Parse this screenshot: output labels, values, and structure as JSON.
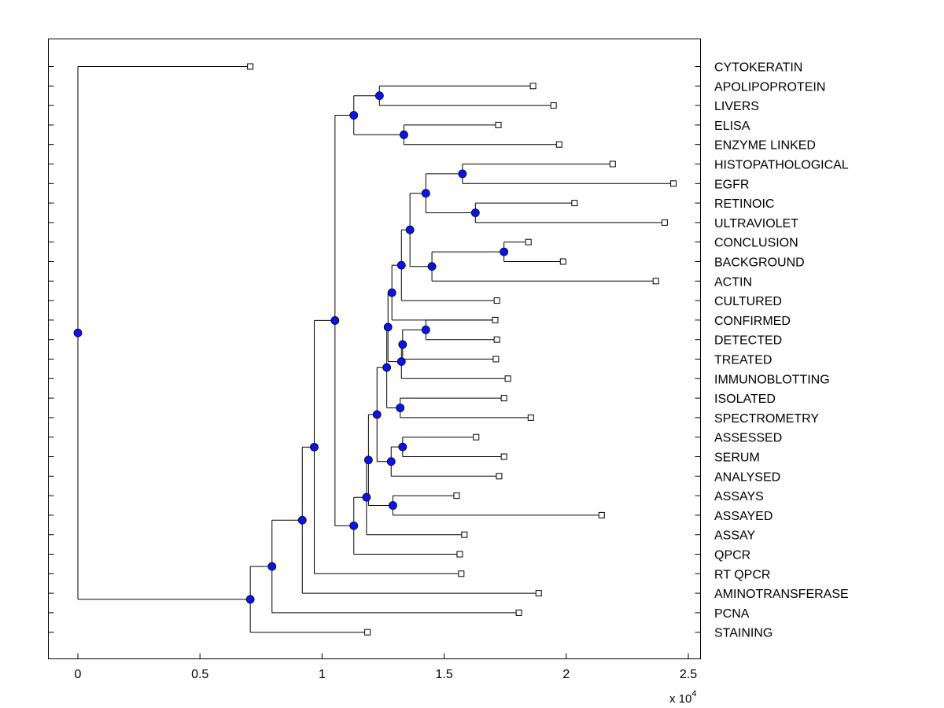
{
  "chart_data": {
    "type": "dendrogram",
    "title": "",
    "xlabel": "",
    "ylabel": "",
    "x_exponent": {
      "base": "x 10",
      "power": "4"
    },
    "xlim": [
      -0.12,
      2.55
    ],
    "xticks": [
      0,
      0.5,
      1,
      1.5,
      2,
      2.5
    ],
    "xtick_labels": [
      "0",
      "0.5",
      "1",
      "1.5",
      "2",
      "2.5"
    ],
    "colors": {
      "node_fill": "#0a14f0",
      "line": "#000000",
      "leaf_fill": "#ffffff"
    },
    "leaves": [
      {
        "label": "CYTOKERATIN",
        "value": 0.706
      },
      {
        "label": "APOLIPOPROTEIN",
        "value": 1.864
      },
      {
        "label": "LIVERS",
        "value": 1.948
      },
      {
        "label": "ELISA",
        "value": 1.722
      },
      {
        "label": "ENZYME LINKED",
        "value": 1.971
      },
      {
        "label": "HISTOPATHOLOGICAL",
        "value": 2.19
      },
      {
        "label": "EGFR",
        "value": 2.439
      },
      {
        "label": "RETINOIC",
        "value": 2.034
      },
      {
        "label": "ULTRAVIOLET",
        "value": 2.403
      },
      {
        "label": "CONCLUSION",
        "value": 1.845
      },
      {
        "label": "BACKGROUND",
        "value": 1.987
      },
      {
        "label": "ACTIN",
        "value": 2.367
      },
      {
        "label": "CULTURED",
        "value": 1.716
      },
      {
        "label": "CONFIRMED",
        "value": 1.709
      },
      {
        "label": "DETECTED",
        "value": 1.716
      },
      {
        "label": "TREATED",
        "value": 1.712
      },
      {
        "label": "IMMUNOBLOTTING",
        "value": 1.761
      },
      {
        "label": "ISOLATED",
        "value": 1.745
      },
      {
        "label": "SPECTROMETRY",
        "value": 1.855
      },
      {
        "label": "ASSESSED",
        "value": 1.631
      },
      {
        "label": "SERUM",
        "value": 1.745
      },
      {
        "label": "ANALYSED",
        "value": 1.725
      },
      {
        "label": "ASSAYS",
        "value": 1.551
      },
      {
        "label": "ASSAYED",
        "value": 2.145
      },
      {
        "label": "ASSAY",
        "value": 1.583
      },
      {
        "label": "QPCR",
        "value": 1.564
      },
      {
        "label": "RT QPCR",
        "value": 1.57
      },
      {
        "label": "AMINOTRANSFERASE",
        "value": 1.887
      },
      {
        "label": "PCNA",
        "value": 1.806
      },
      {
        "label": "STAINING",
        "value": 1.186
      }
    ],
    "nodes": [
      {
        "id": "n1",
        "value": 1.235,
        "children": [
          "L1",
          "L2"
        ]
      },
      {
        "id": "n2",
        "value": 1.335,
        "children": [
          "L3",
          "L4"
        ]
      },
      {
        "id": "n3",
        "value": 1.13,
        "children": [
          "n1",
          "n2"
        ]
      },
      {
        "id": "n4",
        "value": 1.575,
        "children": [
          "L5",
          "L6"
        ]
      },
      {
        "id": "n5",
        "value": 1.628,
        "children": [
          "L7",
          "L8"
        ]
      },
      {
        "id": "n6",
        "value": 1.425,
        "children": [
          "n4",
          "n5"
        ]
      },
      {
        "id": "n7",
        "value": 1.745,
        "children": [
          "L9",
          "L10"
        ]
      },
      {
        "id": "n8",
        "value": 1.45,
        "children": [
          "n7",
          "L11"
        ]
      },
      {
        "id": "n9",
        "value": 1.36,
        "children": [
          "n6",
          "n8"
        ]
      },
      {
        "id": "n10",
        "value": 1.325,
        "children": [
          "n9",
          "L12"
        ]
      },
      {
        "id": "n11",
        "value": 1.286,
        "children": [
          "n10",
          "L13"
        ]
      },
      {
        "id": "n12",
        "value": 1.425,
        "children": [
          "L13",
          "L14"
        ]
      },
      {
        "id": "n13",
        "value": 1.33,
        "children": [
          "n12",
          "L15"
        ]
      },
      {
        "id": "n14",
        "value": 1.325,
        "children": [
          "n13",
          "L16"
        ]
      },
      {
        "id": "n15",
        "value": 1.27,
        "children": [
          "n11",
          "n14"
        ]
      },
      {
        "id": "n16",
        "value": 1.32,
        "children": [
          "L17",
          "L18"
        ]
      },
      {
        "id": "n17",
        "value": 1.265,
        "children": [
          "n15",
          "n16"
        ]
      },
      {
        "id": "n18",
        "value": 1.33,
        "children": [
          "L19",
          "L20"
        ]
      },
      {
        "id": "n19",
        "value": 1.283,
        "children": [
          "n18",
          "L21"
        ]
      },
      {
        "id": "n20",
        "value": 1.225,
        "children": [
          "n17",
          "n19"
        ]
      },
      {
        "id": "n21",
        "value": 1.29,
        "children": [
          "L22",
          "L23"
        ]
      },
      {
        "id": "n22",
        "value": 1.19,
        "children": [
          "n20",
          "n21"
        ]
      },
      {
        "id": "n23",
        "value": 1.182,
        "children": [
          "n22",
          "L24"
        ]
      },
      {
        "id": "n24",
        "value": 1.13,
        "children": [
          "n23",
          "L25"
        ]
      },
      {
        "id": "n25",
        "value": 1.053,
        "children": [
          "n3",
          "n24"
        ]
      },
      {
        "id": "n26",
        "value": 0.968,
        "children": [
          "n25",
          "L26"
        ]
      },
      {
        "id": "n27",
        "value": 0.919,
        "children": [
          "n26",
          "L27"
        ]
      },
      {
        "id": "n28",
        "value": 0.795,
        "children": [
          "n27",
          "L28"
        ]
      },
      {
        "id": "n29",
        "value": 0.706,
        "children": [
          "n28",
          "L29"
        ]
      },
      {
        "id": "n30",
        "value": 0.0,
        "children": [
          "L0",
          "n29"
        ]
      }
    ]
  }
}
